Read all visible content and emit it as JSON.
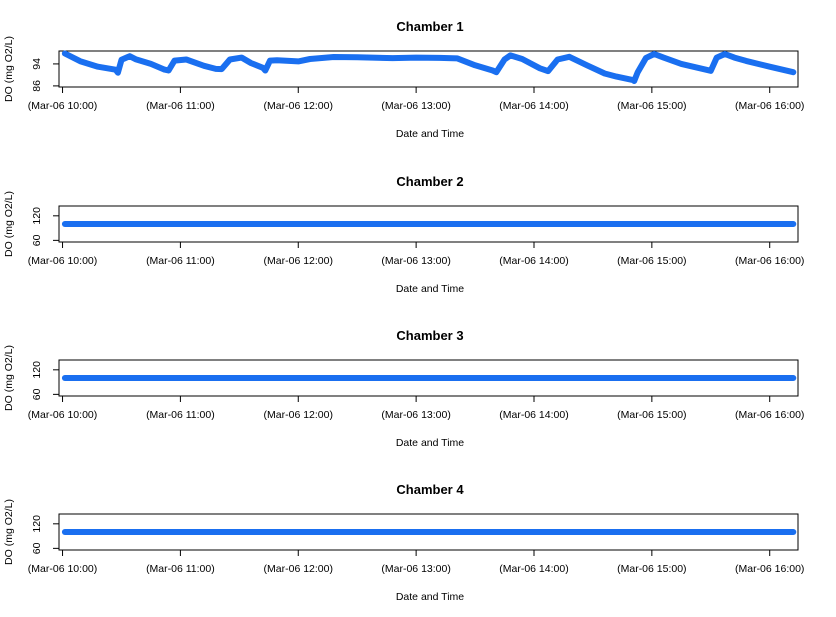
{
  "chart_data": [
    {
      "type": "line",
      "title": "Chamber 1",
      "xlabel": "Date and Time",
      "ylabel": "DO (mg O2/L)",
      "color": "#1a6ff0",
      "x_ticks": [
        "(Mar-06 10:00)",
        "(Mar-06 11:00)",
        "(Mar-06 12:00)",
        "(Mar-06 13:00)",
        "(Mar-06 14:00)",
        "(Mar-06 15:00)",
        "(Mar-06 16:00)"
      ],
      "x_tick_hours": [
        10,
        11,
        12,
        13,
        14,
        15,
        16
      ],
      "xlim": [
        9.97,
        16.24
      ],
      "y_ticks": [
        "86",
        "94"
      ],
      "y_tick_values": [
        86,
        94
      ],
      "ylim": [
        85.6,
        98.7
      ],
      "series": [
        {
          "x": [
            10.02,
            10.15,
            10.3,
            10.45,
            10.47,
            10.5,
            10.57,
            10.62,
            10.75,
            10.86,
            10.9,
            10.95,
            11.05,
            11.2,
            11.3,
            11.35,
            11.42,
            11.52,
            11.6,
            11.7,
            11.72,
            11.76,
            11.82,
            12.0,
            12.1,
            12.3,
            12.5,
            12.8,
            13.0,
            13.2,
            13.35,
            13.5,
            13.65,
            13.68,
            13.75,
            13.8,
            13.9,
            14.05,
            14.12,
            14.2,
            14.3,
            14.45,
            14.6,
            14.7,
            14.84,
            14.85,
            14.88,
            14.95,
            15.02,
            15.1,
            15.25,
            15.45,
            15.5,
            15.55,
            15.62,
            15.7,
            15.8,
            16.0,
            16.2
          ],
          "y": [
            97.8,
            95.0,
            93.0,
            91.9,
            90.8,
            95.5,
            96.8,
            95.7,
            94.0,
            92.0,
            91.6,
            95.2,
            95.6,
            93.3,
            92.2,
            92.1,
            95.6,
            96.3,
            94.3,
            92.6,
            91.6,
            95.2,
            95.3,
            94.9,
            95.8,
            96.5,
            96.4,
            96.1,
            96.3,
            96.2,
            96.0,
            93.5,
            91.6,
            91.0,
            95.6,
            97.1,
            95.8,
            92.4,
            91.4,
            95.6,
            96.6,
            93.5,
            90.5,
            89.4,
            88.1,
            87.8,
            91.0,
            96.2,
            97.6,
            96.3,
            94.0,
            92.0,
            91.5,
            96.3,
            97.6,
            96.3,
            95.1,
            93.0,
            91.0
          ]
        }
      ]
    },
    {
      "type": "line",
      "title": "Chamber 2",
      "xlabel": "Date and Time",
      "ylabel": "DO (mg O2/L)",
      "color": "#1a6ff0",
      "x_ticks": [
        "(Mar-06 10:00)",
        "(Mar-06 11:00)",
        "(Mar-06 12:00)",
        "(Mar-06 13:00)",
        "(Mar-06 14:00)",
        "(Mar-06 15:00)",
        "(Mar-06 16:00)"
      ],
      "x_tick_hours": [
        10,
        11,
        12,
        13,
        14,
        15,
        16
      ],
      "xlim": [
        9.97,
        16.24
      ],
      "y_ticks": [
        "60",
        "120"
      ],
      "y_tick_values": [
        60,
        120
      ],
      "ylim": [
        56,
        144
      ],
      "series": [
        {
          "x": [
            10.02,
            16.2
          ],
          "y": [
            100,
            100
          ]
        }
      ]
    },
    {
      "type": "line",
      "title": "Chamber 3",
      "xlabel": "Date and Time",
      "ylabel": "DO (mg O2/L)",
      "color": "#1a6ff0",
      "x_ticks": [
        "(Mar-06 10:00)",
        "(Mar-06 11:00)",
        "(Mar-06 12:00)",
        "(Mar-06 13:00)",
        "(Mar-06 14:00)",
        "(Mar-06 15:00)",
        "(Mar-06 16:00)"
      ],
      "x_tick_hours": [
        10,
        11,
        12,
        13,
        14,
        15,
        16
      ],
      "xlim": [
        9.97,
        16.24
      ],
      "y_ticks": [
        "60",
        "120"
      ],
      "y_tick_values": [
        60,
        120
      ],
      "ylim": [
        56,
        144
      ],
      "series": [
        {
          "x": [
            10.02,
            16.2
          ],
          "y": [
            100,
            100
          ]
        }
      ]
    },
    {
      "type": "line",
      "title": "Chamber 4",
      "xlabel": "Date and Time",
      "ylabel": "DO (mg O2/L)",
      "color": "#1a6ff0",
      "x_ticks": [
        "(Mar-06 10:00)",
        "(Mar-06 11:00)",
        "(Mar-06 12:00)",
        "(Mar-06 13:00)",
        "(Mar-06 14:00)",
        "(Mar-06 15:00)",
        "(Mar-06 16:00)"
      ],
      "x_tick_hours": [
        10,
        11,
        12,
        13,
        14,
        15,
        16
      ],
      "xlim": [
        9.97,
        16.24
      ],
      "y_ticks": [
        "60",
        "120"
      ],
      "y_tick_values": [
        60,
        120
      ],
      "ylim": [
        56,
        144
      ],
      "series": [
        {
          "x": [
            10.02,
            16.2
          ],
          "y": [
            100,
            100
          ]
        }
      ]
    }
  ]
}
